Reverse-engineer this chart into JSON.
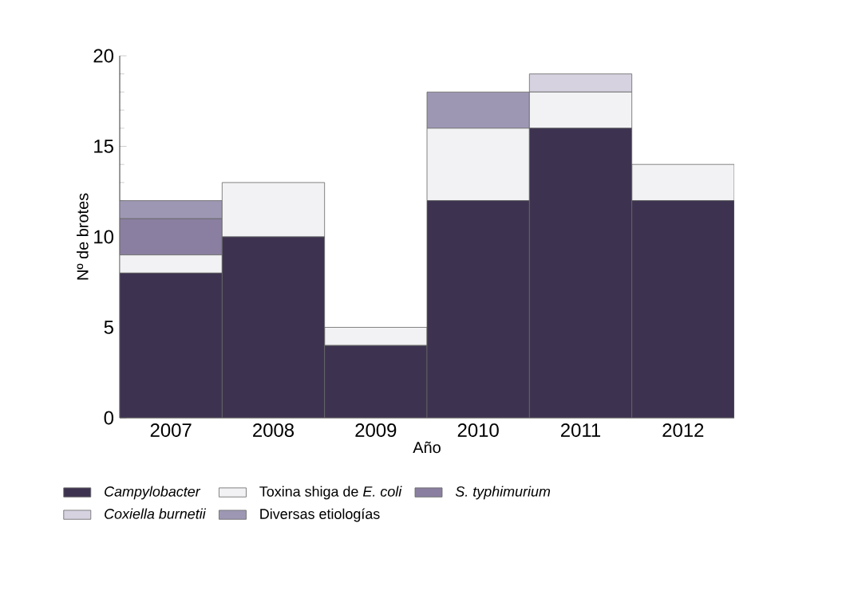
{
  "chart_data": {
    "type": "bar",
    "stacked": true,
    "xlabel": "Año",
    "ylabel": "Nº de brotes",
    "categories": [
      "2007",
      "2008",
      "2009",
      "2010",
      "2011",
      "2012"
    ],
    "series": [
      {
        "name": "*Campylobacter*",
        "color": "#3d3350",
        "values": [
          8,
          10,
          4,
          12,
          16,
          12
        ]
      },
      {
        "name": "Toxina shiga de *E. coli*",
        "color": "#f2f2f5",
        "values": [
          1,
          3,
          1,
          4,
          2,
          2
        ]
      },
      {
        "name": "*S. typhimurium*",
        "color": "#8a7fa0",
        "values": [
          2,
          0,
          0,
          0,
          0,
          0
        ]
      },
      {
        "name": "*Coxiella burnetii*",
        "color": "#d6d2e0",
        "values": [
          0,
          0,
          0,
          0,
          1,
          0
        ]
      },
      {
        "name": "Diversas etiologías",
        "color": "#9e97b4",
        "values": [
          1,
          0,
          0,
          2,
          0,
          0
        ]
      }
    ],
    "ylim": [
      0,
      20
    ],
    "yticks": [
      0,
      5,
      10,
      15,
      20
    ],
    "legend": "bottom"
  }
}
